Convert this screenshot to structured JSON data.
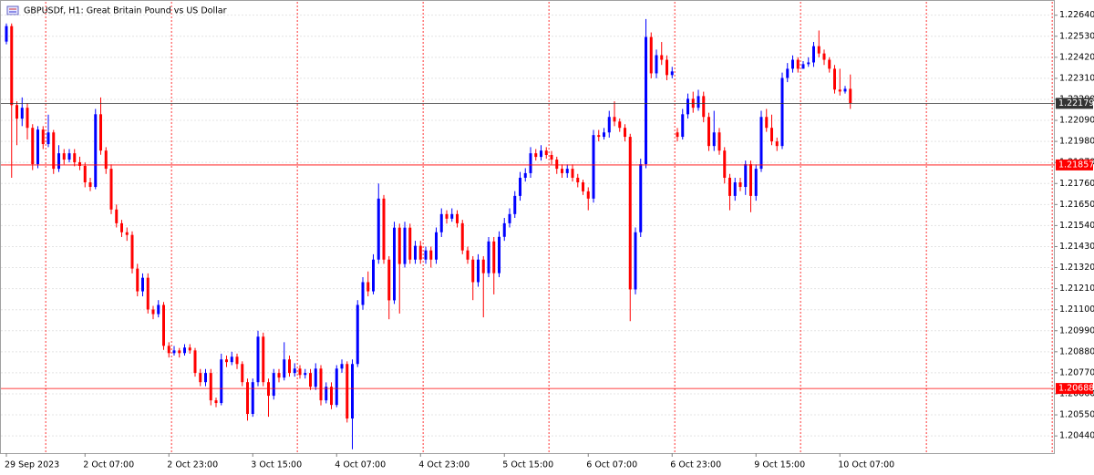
{
  "chart_data": {
    "type": "candlestick",
    "title": "GBPUSDf, H1:  Great Britain Pound vs US Dollar",
    "categories": [
      "29 Sep 2023",
      null,
      null,
      null,
      null,
      null,
      null,
      null,
      null,
      null,
      null,
      null,
      null,
      null,
      null,
      "2 Oct 07:00",
      null,
      null,
      null,
      null,
      null,
      null,
      null,
      null,
      null,
      null,
      null,
      null,
      null,
      null,
      null,
      "2 Oct 23:00",
      null,
      null,
      null,
      null,
      null,
      null,
      null,
      null,
      null,
      null,
      null,
      null,
      null,
      null,
      null,
      "3 Oct 15:00",
      null,
      null,
      null,
      null,
      null,
      null,
      null,
      null,
      null,
      null,
      null,
      null,
      null,
      null,
      null,
      "4 Oct 07:00",
      null,
      null,
      null,
      null,
      null,
      null,
      null,
      null,
      null,
      null,
      null,
      null,
      null,
      null,
      null,
      "4 Oct 23:00",
      null,
      null,
      null,
      null,
      null,
      null,
      null,
      null,
      null,
      null,
      null,
      null,
      null,
      null,
      null,
      "5 Oct 15:00",
      null,
      null,
      null,
      null,
      null,
      null,
      null,
      null,
      null,
      null,
      null,
      null,
      null,
      null,
      null,
      "6 Oct 07:00",
      null,
      null,
      null,
      null,
      null,
      null,
      null,
      null,
      null,
      null,
      null,
      null,
      null,
      null,
      null,
      "6 Oct 23:00",
      null,
      null,
      null,
      null,
      null,
      null,
      null,
      null,
      null,
      null,
      null,
      null,
      null,
      null,
      null,
      "9 Oct 15:00",
      null,
      null,
      null,
      null,
      null,
      null,
      null,
      null,
      null,
      null,
      null,
      null,
      null,
      null,
      null,
      "10 Oct 07:00",
      null,
      null
    ],
    "open": [
      1.22502,
      1.22583,
      1.2217,
      1.22099,
      1.22156,
      1.22051,
      1.21861,
      1.22042,
      1.21966,
      1.22027,
      1.21837,
      1.21918,
      1.21885,
      1.21918,
      1.21871,
      1.21852,
      1.21766,
      1.21742,
      1.22122,
      1.21932,
      1.21837,
      1.21624,
      1.21552,
      1.21505,
      1.21491,
      1.21315,
      1.21196,
      1.21267,
      1.21101,
      1.21077,
      1.21125,
      1.20911,
      1.20873,
      1.20887,
      1.20873,
      1.20902,
      1.20887,
      1.20769,
      1.20721,
      1.20769,
      1.20626,
      1.20612,
      1.2084,
      1.20826,
      1.20854,
      1.20816,
      1.20721,
      1.20555,
      1.20721,
      1.20959,
      1.20721,
      1.2065,
      1.20769,
      1.20745,
      1.2084,
      1.20769,
      1.20792,
      1.20759,
      1.20769,
      1.20697,
      1.20792,
      1.20626,
      1.20697,
      1.20602,
      1.20792,
      1.20816,
      1.20531,
      1.20816,
      1.21125,
      1.21244,
      1.21196,
      1.21362,
      1.21681,
      1.21362,
      1.21149,
      1.21529,
      1.21339,
      1.21529,
      1.21362,
      1.21434,
      1.21362,
      1.2141,
      1.21362,
      1.21505,
      1.216,
      1.21576,
      1.216,
      1.21552,
      1.2141,
      1.21362,
      1.21244,
      1.21362,
      1.21291,
      1.21457,
      1.21291,
      1.21481,
      1.21552,
      1.216,
      1.21695,
      1.2179,
      1.21814,
      1.21918,
      1.21899,
      1.21932,
      1.21909,
      1.21885,
      1.21837,
      1.21814,
      1.21837,
      1.2179,
      1.21766,
      1.21719,
      1.21681,
      1.22013,
      1.22004,
      1.22027,
      1.22108,
      1.22084,
      1.22051,
      1.22004,
      1.21206,
      1.21505,
      1.21861,
      1.22526,
      1.22336,
      1.22431,
      1.22407,
      1.22327,
      1.22027,
      1.22004,
      1.22122,
      1.22203,
      1.22156,
      1.22217,
      1.22108,
      1.21956,
      1.22027,
      1.21932,
      1.2179,
      1.21695,
      1.21766,
      1.21742,
      1.21861,
      1.21695,
      1.21837,
      1.22108,
      1.22051,
      1.2198,
      1.21956,
      1.22312,
      1.2236,
      1.22407,
      1.2236,
      1.22384,
      1.22393,
      1.22478,
      1.2244,
      1.22407,
      1.2236,
      1.22251,
      1.22241,
      1.22255
    ],
    "high": [
      1.22597,
      1.22597,
      1.2219,
      1.2221,
      1.2218,
      1.2207,
      1.2206,
      1.2206,
      1.2212,
      1.2204,
      1.2196,
      1.2194,
      1.2194,
      1.2194,
      1.219,
      1.2187,
      1.2179,
      1.2215,
      1.2221,
      1.2195,
      1.2186,
      1.2165,
      1.2157,
      1.2153,
      1.2151,
      1.2134,
      1.2129,
      1.2129,
      1.2112,
      1.2115,
      1.2114,
      1.2093,
      1.2091,
      1.209,
      1.2092,
      1.2092,
      1.209,
      1.2079,
      1.2079,
      1.2079,
      1.2064,
      1.2087,
      1.2086,
      1.2088,
      1.2087,
      1.2083,
      1.2074,
      1.2074,
      1.2099,
      1.2098,
      1.2074,
      1.2079,
      1.2079,
      1.2093,
      1.2086,
      1.2082,
      1.2081,
      1.2079,
      1.2079,
      1.2082,
      1.2081,
      1.2072,
      1.2072,
      1.2081,
      1.2084,
      1.2083,
      1.2084,
      1.2115,
      1.2127,
      1.213,
      1.2139,
      1.2176,
      1.217,
      1.2138,
      1.2156,
      1.2155,
      1.2156,
      1.2155,
      1.2146,
      1.2146,
      1.2143,
      1.2143,
      1.2153,
      1.2163,
      1.2162,
      1.2163,
      1.2162,
      1.2157,
      1.2143,
      1.2138,
      1.2139,
      1.2138,
      1.2148,
      1.2148,
      1.2151,
      1.2158,
      1.2163,
      1.2172,
      1.2182,
      1.2184,
      1.2195,
      1.2194,
      1.2196,
      1.2195,
      1.2193,
      1.219,
      1.2186,
      1.2186,
      1.2186,
      1.2181,
      1.2178,
      1.2174,
      1.2204,
      1.2204,
      1.2205,
      1.2214,
      1.2219,
      1.221,
      1.2207,
      1.2202,
      1.2153,
      1.2189,
      1.2262,
      1.2255,
      1.2246,
      1.225,
      1.2243,
      1.2237,
      1.2205,
      1.2215,
      1.2223,
      1.2224,
      1.2225,
      1.2224,
      1.2213,
      1.2214,
      1.2205,
      1.2195,
      1.2181,
      1.2179,
      1.2179,
      1.2188,
      1.2188,
      1.2186,
      1.2214,
      1.2215,
      1.2212,
      1.22,
      1.2234,
      1.2239,
      1.2243,
      1.2242,
      1.224,
      1.2242,
      1.225,
      1.2256,
      1.2246,
      1.2242,
      1.2238,
      1.2236,
      1.2227,
      1.2233
    ],
    "low": [
      1.22488,
      1.2179,
      1.2196,
      1.2206,
      1.2199,
      1.2183,
      1.2184,
      1.2194,
      1.2195,
      1.2181,
      1.2182,
      1.2186,
      1.2187,
      1.2185,
      1.2183,
      1.2174,
      1.2172,
      1.2173,
      1.2191,
      1.2181,
      1.216,
      1.2153,
      1.2148,
      1.2146,
      1.2129,
      1.2117,
      1.2117,
      1.2108,
      1.2105,
      1.2106,
      1.2089,
      1.2085,
      1.2086,
      1.2085,
      1.2086,
      1.2087,
      1.2075,
      1.207,
      1.207,
      1.206,
      1.2059,
      1.206,
      1.208,
      1.2081,
      1.2079,
      1.207,
      1.2052,
      1.2054,
      1.207,
      1.207,
      1.2054,
      1.2063,
      1.2072,
      1.2073,
      1.2075,
      1.2075,
      1.2074,
      1.2074,
      1.2068,
      1.2068,
      1.206,
      1.2061,
      1.2058,
      1.2059,
      1.2077,
      1.2051,
      1.2037,
      1.208,
      1.211,
      1.2117,
      1.2118,
      1.2134,
      1.2134,
      1.2105,
      1.2113,
      1.2108,
      1.2132,
      1.2134,
      1.2134,
      1.2134,
      1.2134,
      1.2132,
      1.2134,
      1.2148,
      1.2155,
      1.2156,
      1.2153,
      1.2139,
      1.2134,
      1.2115,
      1.2122,
      1.2106,
      1.2127,
      1.2118,
      1.2127,
      1.2146,
      1.2153,
      1.2158,
      1.2167,
      1.2177,
      1.2179,
      1.2188,
      1.2188,
      1.2189,
      1.2186,
      1.2181,
      1.2179,
      1.2179,
      1.2177,
      1.2174,
      1.217,
      1.2162,
      1.2166,
      1.2198,
      1.2199,
      1.22,
      1.2206,
      1.2203,
      1.2198,
      1.2104,
      1.2118,
      1.2148,
      1.2184,
      1.2231,
      1.2231,
      1.2238,
      1.223,
      1.2231,
      1.2198,
      1.2199,
      1.221,
      1.2213,
      1.2214,
      1.2208,
      1.2193,
      1.2193,
      1.2191,
      1.2176,
      1.2162,
      1.2167,
      1.2172,
      1.217,
      1.2161,
      1.2167,
      1.2182,
      1.2203,
      1.2196,
      1.2193,
      1.2194,
      1.2229,
      1.2234,
      1.2234,
      1.2236,
      1.2237,
      1.2237,
      1.2242,
      1.2238,
      1.2234,
      1.2223,
      1.2222,
      1.2223,
      1.2215
    ],
    "close": [
      1.22583,
      1.2217,
      1.22099,
      1.22156,
      1.22051,
      1.21861,
      1.22042,
      1.21966,
      1.22027,
      1.21837,
      1.21918,
      1.21885,
      1.21918,
      1.21871,
      1.21852,
      1.21766,
      1.21742,
      1.22122,
      1.21932,
      1.21837,
      1.21624,
      1.21552,
      1.21505,
      1.21491,
      1.21315,
      1.21196,
      1.21267,
      1.21101,
      1.21077,
      1.21125,
      1.20911,
      1.20873,
      1.20887,
      1.20873,
      1.20902,
      1.20887,
      1.20769,
      1.20721,
      1.20769,
      1.20626,
      1.20612,
      1.2084,
      1.20826,
      1.20854,
      1.20816,
      1.20721,
      1.20555,
      1.20721,
      1.20959,
      1.20721,
      1.2065,
      1.20769,
      1.20745,
      1.2084,
      1.20769,
      1.20792,
      1.20759,
      1.20769,
      1.20697,
      1.20792,
      1.20626,
      1.20697,
      1.20602,
      1.20792,
      1.20816,
      1.20531,
      1.20816,
      1.21125,
      1.21244,
      1.21196,
      1.21362,
      1.21681,
      1.21362,
      1.21149,
      1.21529,
      1.21339,
      1.21529,
      1.21362,
      1.21434,
      1.21362,
      1.2141,
      1.21362,
      1.21505,
      1.216,
      1.21576,
      1.216,
      1.21552,
      1.2141,
      1.21362,
      1.21244,
      1.21362,
      1.21291,
      1.21457,
      1.21291,
      1.21481,
      1.21552,
      1.216,
      1.21695,
      1.2179,
      1.21814,
      1.21918,
      1.21899,
      1.21932,
      1.21909,
      1.21885,
      1.21837,
      1.21814,
      1.21837,
      1.2179,
      1.21766,
      1.21719,
      1.21681,
      1.22013,
      1.22004,
      1.22027,
      1.22108,
      1.22084,
      1.22051,
      1.22004,
      1.21206,
      1.21505,
      1.21861,
      1.22526,
      1.22336,
      1.22431,
      1.22407,
      1.22327,
      1.22346,
      1.22004,
      1.22122,
      1.22203,
      1.22156,
      1.22217,
      1.22108,
      1.21956,
      1.22027,
      1.21932,
      1.2179,
      1.21695,
      1.21766,
      1.21742,
      1.21861,
      1.21695,
      1.21837,
      1.22108,
      1.22051,
      1.2198,
      1.21956,
      1.22312,
      1.2236,
      1.22407,
      1.2236,
      1.22384,
      1.22393,
      1.22478,
      1.2244,
      1.22407,
      1.2236,
      1.22251,
      1.22241,
      1.22255,
      1.22179
    ],
    "up_color": "#0000ff",
    "down_color": "#ff0000",
    "ylim": [
      1.2035,
      1.2271
    ],
    "yticks": [
      {
        "value": 1.2044,
        "label": "1.20440"
      },
      {
        "value": 1.2055,
        "label": "1.20550"
      },
      {
        "value": 1.2066,
        "label": "1.20660"
      },
      {
        "value": 1.2077,
        "label": "1.20770"
      },
      {
        "value": 1.2088,
        "label": "1.20880"
      },
      {
        "value": 1.2099,
        "label": "1.20990"
      },
      {
        "value": 1.211,
        "label": "1.21100"
      },
      {
        "value": 1.2121,
        "label": "1.21210"
      },
      {
        "value": 1.2132,
        "label": "1.21320"
      },
      {
        "value": 1.2143,
        "label": "1.21430"
      },
      {
        "value": 1.2154,
        "label": "1.21540"
      },
      {
        "value": 1.2165,
        "label": "1.21650"
      },
      {
        "value": 1.2176,
        "label": "1.21760"
      },
      {
        "value": 1.2187,
        "label": "1.21870"
      },
      {
        "value": 1.2198,
        "label": "1.21980"
      },
      {
        "value": 1.2209,
        "label": "1.22090"
      },
      {
        "value": 1.222,
        "label": "1.22200"
      },
      {
        "value": 1.2231,
        "label": "1.22310"
      },
      {
        "value": 1.2242,
        "label": "1.22420"
      },
      {
        "value": 1.2253,
        "label": "1.22530"
      },
      {
        "value": 1.2264,
        "label": "1.22640"
      }
    ],
    "grid": true,
    "hlines": [
      {
        "value": 1.22179,
        "color": "#333333"
      },
      {
        "value": 1.21857,
        "color": "#ff0000"
      },
      {
        "value": 1.20688,
        "color": "#ff0000"
      }
    ]
  }
}
